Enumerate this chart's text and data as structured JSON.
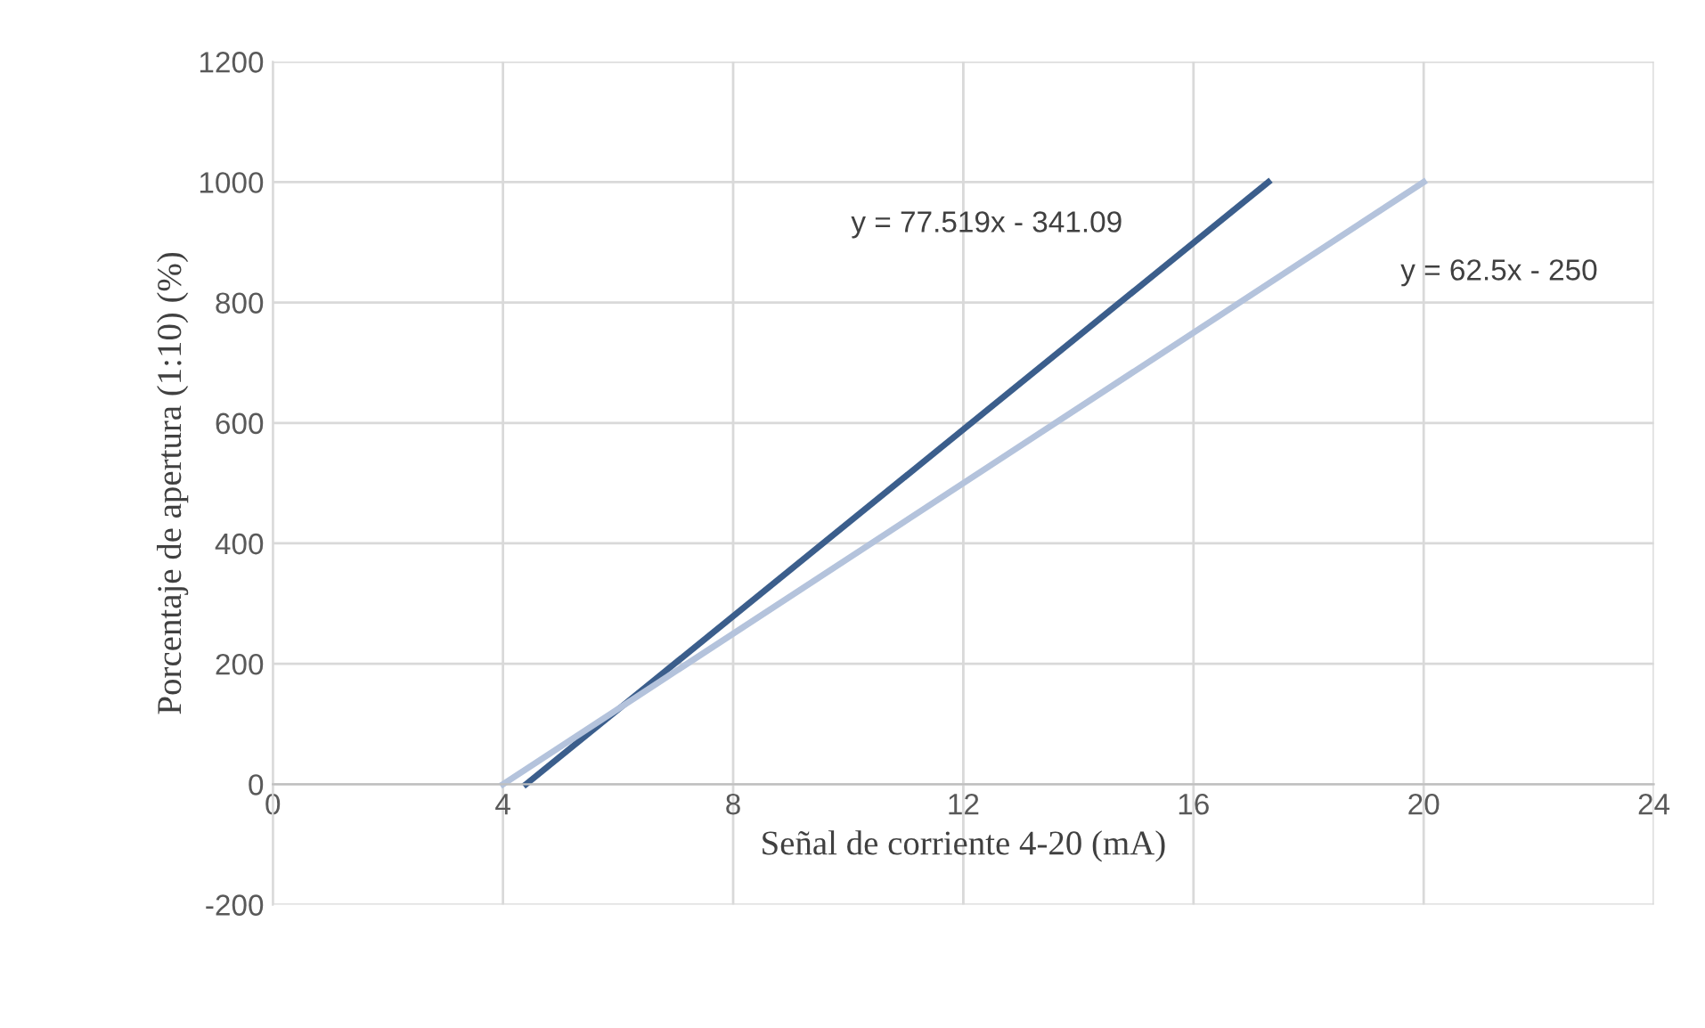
{
  "chart_data": {
    "type": "line",
    "xlabel": "Señal de corriente 4-20 (mA)",
    "ylabel": "Porcentaje de apertura (1:10) (%)",
    "series": [
      {
        "x": [
          4.4,
          17.3
        ],
        "values": [
          0,
          1000
        ],
        "color": "#3b5e8c"
      },
      {
        "x": [
          4,
          20
        ],
        "values": [
          0,
          1000
        ],
        "color": "#b4c3dc"
      }
    ],
    "annotations": [
      "y = 77.519x - 341.09",
      "y = 62.5x - 250"
    ],
    "xlim": [
      0,
      24
    ],
    "xticks": [
      0,
      4,
      8,
      12,
      16,
      20,
      24
    ],
    "ylim": [
      -200,
      1200
    ],
    "yticks": [
      -200,
      0,
      200,
      400,
      600,
      800,
      1000,
      1200
    ],
    "grid": true,
    "marker": "none",
    "line_style": "solid",
    "legend": false
  }
}
